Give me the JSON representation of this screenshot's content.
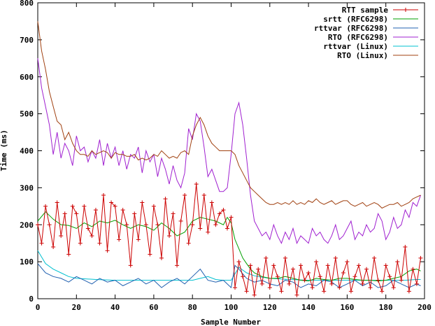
{
  "chart_data": {
    "type": "line",
    "title": "",
    "xlabel": "Sample Number",
    "ylabel": "Time (ms)",
    "xlim": [
      0,
      200
    ],
    "ylim": [
      0,
      800
    ],
    "xticks": [
      0,
      20,
      40,
      60,
      80,
      100,
      120,
      140,
      160,
      180,
      200
    ],
    "yticks": [
      0,
      100,
      200,
      300,
      400,
      500,
      600,
      700,
      800
    ],
    "grid": false,
    "legend_position": "top-right",
    "series": [
      {
        "name": "RTT sample",
        "color": "#cc0000",
        "marker": "plus",
        "x": [
          0,
          2,
          4,
          6,
          8,
          10,
          12,
          14,
          16,
          18,
          20,
          22,
          24,
          26,
          28,
          30,
          32,
          34,
          36,
          38,
          40,
          42,
          44,
          46,
          48,
          50,
          52,
          54,
          56,
          58,
          60,
          62,
          64,
          66,
          68,
          70,
          72,
          74,
          76,
          78,
          80,
          82,
          84,
          86,
          88,
          90,
          92,
          94,
          96,
          98,
          100,
          102,
          104,
          106,
          108,
          110,
          112,
          114,
          116,
          118,
          120,
          122,
          124,
          126,
          128,
          130,
          132,
          134,
          136,
          138,
          140,
          142,
          144,
          146,
          148,
          150,
          152,
          154,
          156,
          158,
          160,
          162,
          164,
          166,
          168,
          170,
          172,
          174,
          176,
          178,
          180,
          182,
          184,
          186,
          188,
          190,
          192,
          194,
          196,
          198
        ],
        "y": [
          200,
          150,
          250,
          200,
          140,
          260,
          170,
          230,
          120,
          250,
          230,
          150,
          250,
          190,
          170,
          240,
          150,
          280,
          130,
          260,
          250,
          160,
          240,
          200,
          90,
          230,
          160,
          260,
          200,
          120,
          250,
          200,
          110,
          270,
          170,
          230,
          90,
          210,
          280,
          150,
          200,
          310,
          190,
          280,
          180,
          260,
          200,
          230,
          240,
          190,
          220,
          30,
          100,
          60,
          20,
          90,
          10,
          80,
          40,
          110,
          30,
          90,
          60,
          20,
          110,
          40,
          80,
          10,
          90,
          50,
          70,
          30,
          100,
          60,
          20,
          90,
          40,
          110,
          30,
          70,
          100,
          20,
          60,
          90,
          40,
          80,
          30,
          110,
          50,
          20,
          90,
          60,
          30,
          100,
          50,
          140,
          20,
          80,
          40,
          110
        ]
      },
      {
        "name": "srtt (RFC6298)",
        "color": "#00a000",
        "x": [
          0,
          4,
          8,
          12,
          16,
          20,
          24,
          28,
          32,
          36,
          40,
          44,
          48,
          52,
          56,
          60,
          64,
          68,
          72,
          76,
          80,
          84,
          88,
          92,
          96,
          98,
          100,
          102,
          104,
          106,
          108,
          110,
          112,
          116,
          120,
          124,
          128,
          132,
          136,
          140,
          144,
          148,
          152,
          156,
          160,
          164,
          168,
          172,
          176,
          180,
          184,
          188,
          192,
          196,
          198
        ],
        "y": [
          210,
          235,
          215,
          200,
          198,
          190,
          205,
          195,
          210,
          205,
          212,
          200,
          190,
          200,
          195,
          185,
          205,
          190,
          170,
          180,
          210,
          220,
          215,
          210,
          200,
          220,
          205,
          160,
          135,
          110,
          95,
          80,
          70,
          60,
          55,
          55,
          60,
          55,
          50,
          48,
          55,
          52,
          50,
          55,
          55,
          52,
          50,
          50,
          48,
          50,
          55,
          60,
          75,
          80,
          75
        ]
      },
      {
        "name": "rttvar (RFC6298)",
        "color": "#2060b0",
        "x": [
          0,
          4,
          8,
          12,
          16,
          20,
          24,
          28,
          32,
          36,
          40,
          44,
          48,
          52,
          56,
          60,
          64,
          68,
          72,
          76,
          80,
          84,
          88,
          92,
          96,
          100,
          102,
          104,
          108,
          112,
          116,
          120,
          124,
          128,
          132,
          136,
          140,
          144,
          148,
          152,
          156,
          160,
          164,
          168,
          172,
          176,
          180,
          184,
          188,
          192,
          196,
          198
        ],
        "y": [
          95,
          70,
          60,
          55,
          45,
          60,
          50,
          40,
          55,
          45,
          50,
          35,
          45,
          55,
          40,
          50,
          30,
          45,
          55,
          40,
          60,
          80,
          50,
          45,
          50,
          30,
          90,
          80,
          55,
          45,
          50,
          40,
          35,
          50,
          45,
          30,
          40,
          35,
          50,
          45,
          30,
          40,
          50,
          35,
          45,
          30,
          35,
          50,
          40,
          30,
          40,
          35
        ]
      },
      {
        "name": "RTO (RFC6298)",
        "color": "#a020d0",
        "x": [
          0,
          2,
          4,
          6,
          8,
          10,
          12,
          14,
          16,
          18,
          20,
          22,
          24,
          26,
          28,
          30,
          32,
          34,
          36,
          38,
          40,
          42,
          44,
          46,
          48,
          50,
          52,
          54,
          56,
          58,
          60,
          62,
          64,
          66,
          68,
          70,
          72,
          74,
          76,
          78,
          80,
          82,
          84,
          86,
          88,
          90,
          92,
          94,
          96,
          98,
          100,
          102,
          104,
          106,
          108,
          110,
          112,
          114,
          116,
          118,
          120,
          122,
          124,
          126,
          128,
          130,
          132,
          134,
          136,
          138,
          140,
          142,
          144,
          146,
          148,
          150,
          152,
          154,
          156,
          158,
          160,
          162,
          164,
          166,
          168,
          170,
          172,
          174,
          176,
          178,
          180,
          182,
          184,
          186,
          188,
          190,
          192,
          194,
          196,
          198
        ],
        "y": [
          650,
          570,
          520,
          470,
          390,
          450,
          380,
          420,
          400,
          360,
          440,
          400,
          410,
          370,
          400,
          380,
          430,
          360,
          420,
          380,
          410,
          360,
          400,
          350,
          390,
          380,
          410,
          340,
          400,
          370,
          390,
          330,
          380,
          350,
          310,
          360,
          320,
          300,
          340,
          460,
          430,
          500,
          480,
          410,
          330,
          350,
          320,
          290,
          290,
          300,
          390,
          500,
          530,
          470,
          380,
          280,
          210,
          190,
          170,
          180,
          160,
          200,
          170,
          150,
          180,
          160,
          190,
          150,
          170,
          160,
          150,
          190,
          170,
          180,
          160,
          150,
          170,
          200,
          160,
          170,
          190,
          210,
          160,
          180,
          170,
          200,
          180,
          190,
          230,
          210,
          160,
          180,
          220,
          190,
          200,
          240,
          220,
          260,
          250,
          280
        ]
      },
      {
        "name": "rttvar (Linux)",
        "color": "#00c0d0",
        "x": [
          0,
          4,
          8,
          12,
          16,
          20,
          30,
          40,
          50,
          60,
          70,
          80,
          84,
          88,
          92,
          96,
          100,
          104,
          108,
          112,
          116,
          120,
          130,
          140,
          150,
          160,
          170,
          180,
          190,
          196,
          198
        ],
        "y": [
          130,
          95,
          80,
          70,
          60,
          55,
          52,
          50,
          50,
          50,
          50,
          50,
          55,
          60,
          52,
          50,
          50,
          85,
          70,
          62,
          58,
          55,
          52,
          50,
          50,
          50,
          50,
          50,
          50,
          52,
          52
        ]
      },
      {
        "name": "RTO (Linux)",
        "color": "#a04010",
        "x": [
          0,
          2,
          4,
          6,
          8,
          10,
          12,
          14,
          16,
          18,
          20,
          22,
          24,
          26,
          28,
          30,
          32,
          34,
          36,
          38,
          40,
          42,
          44,
          46,
          48,
          50,
          52,
          54,
          56,
          58,
          60,
          62,
          64,
          66,
          68,
          70,
          72,
          74,
          76,
          78,
          80,
          82,
          84,
          86,
          88,
          90,
          92,
          94,
          96,
          98,
          100,
          102,
          104,
          106,
          108,
          110,
          112,
          114,
          116,
          118,
          120,
          122,
          124,
          126,
          128,
          130,
          132,
          134,
          136,
          138,
          140,
          142,
          144,
          146,
          148,
          150,
          152,
          154,
          156,
          158,
          160,
          162,
          164,
          166,
          168,
          170,
          172,
          174,
          176,
          178,
          180,
          182,
          184,
          186,
          188,
          190,
          192,
          194,
          196,
          198
        ],
        "y": [
          750,
          670,
          620,
          560,
          520,
          480,
          470,
          430,
          450,
          420,
          400,
          390,
          390,
          385,
          400,
          390,
          395,
          400,
          395,
          380,
          395,
          390,
          390,
          385,
          385,
          390,
          375,
          380,
          375,
          380,
          390,
          385,
          400,
          390,
          380,
          385,
          380,
          395,
          400,
          390,
          440,
          470,
          490,
          470,
          440,
          420,
          410,
          400,
          400,
          400,
          400,
          390,
          360,
          340,
          320,
          300,
          290,
          280,
          270,
          260,
          255,
          255,
          260,
          255,
          260,
          255,
          265,
          255,
          260,
          255,
          265,
          260,
          270,
          260,
          255,
          260,
          265,
          255,
          260,
          265,
          265,
          255,
          250,
          255,
          260,
          250,
          255,
          260,
          255,
          245,
          250,
          255,
          255,
          260,
          250,
          255,
          260,
          270,
          275,
          280
        ]
      }
    ]
  }
}
